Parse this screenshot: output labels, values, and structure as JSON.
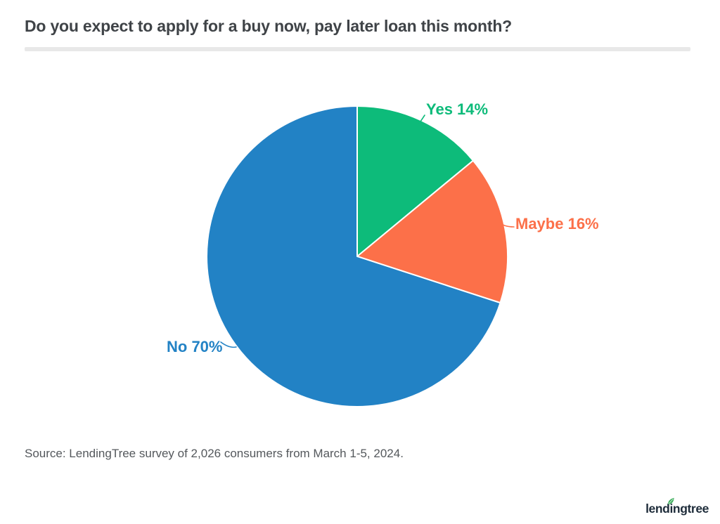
{
  "header": {
    "title": "Do you expect to apply for a buy now, pay later loan this month?"
  },
  "chart_data": {
    "type": "pie",
    "title": "Do you expect to apply for a buy now, pay later loan this month?",
    "categories": [
      "Yes",
      "Maybe",
      "No"
    ],
    "values": [
      14,
      16,
      70
    ],
    "slices": [
      {
        "label": "Yes",
        "value": 14,
        "display": "Yes 14%",
        "color": "#0dbb7a"
      },
      {
        "label": "Maybe",
        "value": 16,
        "display": "Maybe 16%",
        "color": "#fc7049"
      },
      {
        "label": "No",
        "value": 70,
        "display": "No 70%",
        "color": "#2282c5"
      }
    ],
    "start_angle_deg": 0,
    "direction": "clockwise",
    "label_style": "outside-callouts",
    "slice_stroke_color": "#ffffff",
    "legend_position": "none"
  },
  "footer": {
    "source": "Source: LendingTree survey of 2,026 consumers from March 1-5, 2024.",
    "logo_text": "lendingtree"
  },
  "colors": {
    "background": "#ffffff",
    "title_text": "#3f4347",
    "divider": "#e8e8e8",
    "source_text": "#54585c",
    "logo_text": "#1e2c3a",
    "logo_leaf": "#3cae5c"
  }
}
